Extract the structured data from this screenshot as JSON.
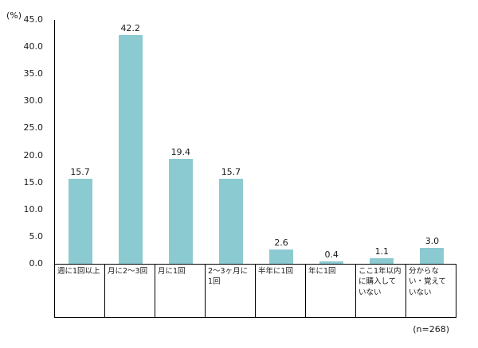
{
  "chart_data": {
    "type": "bar",
    "title": "",
    "xlabel": "",
    "ylabel": "(%)",
    "ylim": [
      0,
      45
    ],
    "yticks": [
      45,
      40,
      35,
      30,
      25,
      20,
      15,
      10,
      5,
      0
    ],
    "categories": [
      "週に1回以上",
      "月に2～3回",
      "月に1回",
      "2～3ヶ月に1回",
      "半年に1回",
      "年に1回",
      "ここ1年以内に購入していない",
      "分からない・覚えていない"
    ],
    "values": [
      15.7,
      42.2,
      19.4,
      15.7,
      2.6,
      0.4,
      1.1,
      3.0
    ],
    "bar_color": "#8ccad1",
    "grid": false,
    "legend": false,
    "note": "(n=268)"
  }
}
